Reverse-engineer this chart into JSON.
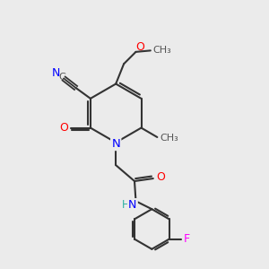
{
  "bg_color": "#ebebeb",
  "bond_color": "#333333",
  "atom_colors": {
    "N": "#0000ff",
    "O": "#ff0000",
    "F": "#ff00ff",
    "C": "#333333",
    "H": "#2ab0a0"
  },
  "figsize": [
    3.0,
    3.0
  ],
  "dpi": 100
}
